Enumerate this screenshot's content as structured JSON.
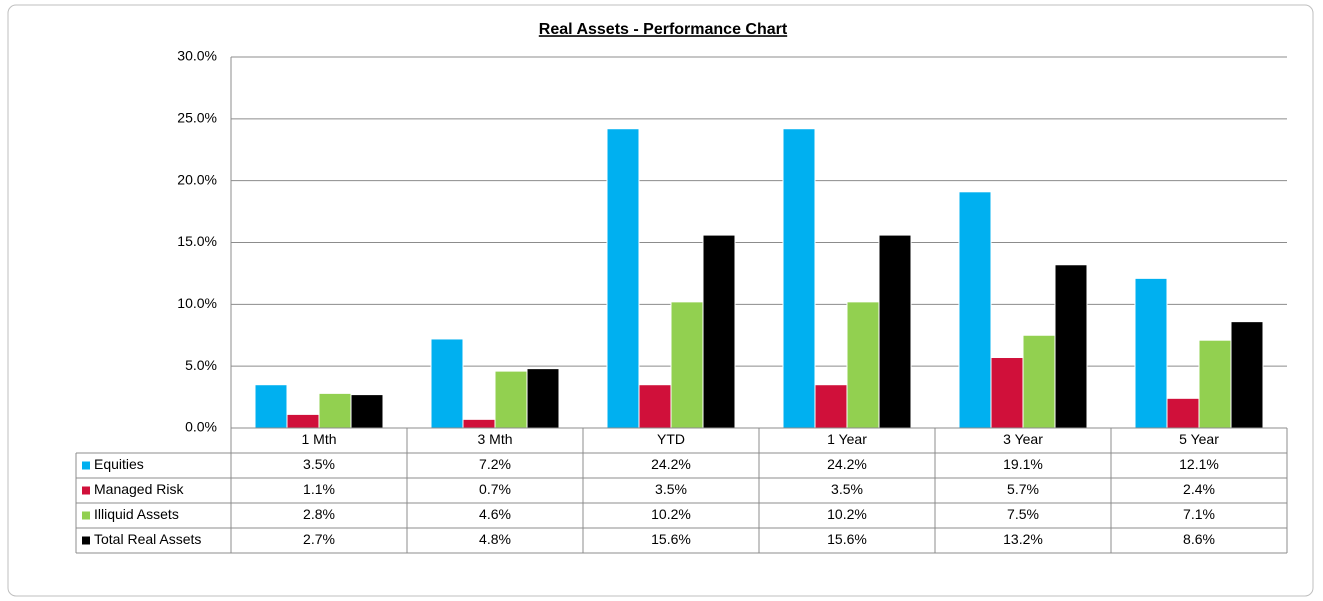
{
  "chart_data": {
    "type": "bar",
    "title": "Real Assets - Performance Chart",
    "categories": [
      "1 Mth",
      "3 Mth",
      "YTD",
      "1 Year",
      "3 Year",
      "5 Year"
    ],
    "series": [
      {
        "name": "Equities",
        "color": "#00b0f0",
        "values": [
          3.5,
          7.2,
          24.2,
          24.2,
          19.1,
          12.1
        ],
        "value_labels": [
          "3.5%",
          "7.2%",
          "24.2%",
          "24.2%",
          "19.1%",
          "12.1%"
        ]
      },
      {
        "name": "Managed Risk",
        "color": "#d0103a",
        "values": [
          1.1,
          0.7,
          3.5,
          3.5,
          5.7,
          2.4
        ],
        "value_labels": [
          "1.1%",
          "0.7%",
          "3.5%",
          "3.5%",
          "5.7%",
          "2.4%"
        ]
      },
      {
        "name": "Illiquid Assets",
        "color": "#92d050",
        "values": [
          2.8,
          4.6,
          10.2,
          10.2,
          7.5,
          7.1
        ],
        "value_labels": [
          "2.8%",
          "4.6%",
          "10.2%",
          "10.2%",
          "7.5%",
          "7.1%"
        ]
      },
      {
        "name": "Total Real Assets",
        "color": "#000000",
        "values": [
          2.7,
          4.8,
          15.6,
          15.6,
          13.2,
          8.6
        ],
        "value_labels": [
          "2.7%",
          "4.8%",
          "15.6%",
          "15.6%",
          "13.2%",
          "8.6%"
        ]
      }
    ],
    "ylim": [
      0,
      30
    ],
    "yticks": [
      {
        "value": 0,
        "label": "0.0%"
      },
      {
        "value": 5,
        "label": "5.0%"
      },
      {
        "value": 10,
        "label": "10.0%"
      },
      {
        "value": 15,
        "label": "15.0%"
      },
      {
        "value": 20,
        "label": "20.0%"
      },
      {
        "value": 25,
        "label": "25.0%"
      },
      {
        "value": 30,
        "label": "30.0%"
      }
    ],
    "grid": true
  }
}
